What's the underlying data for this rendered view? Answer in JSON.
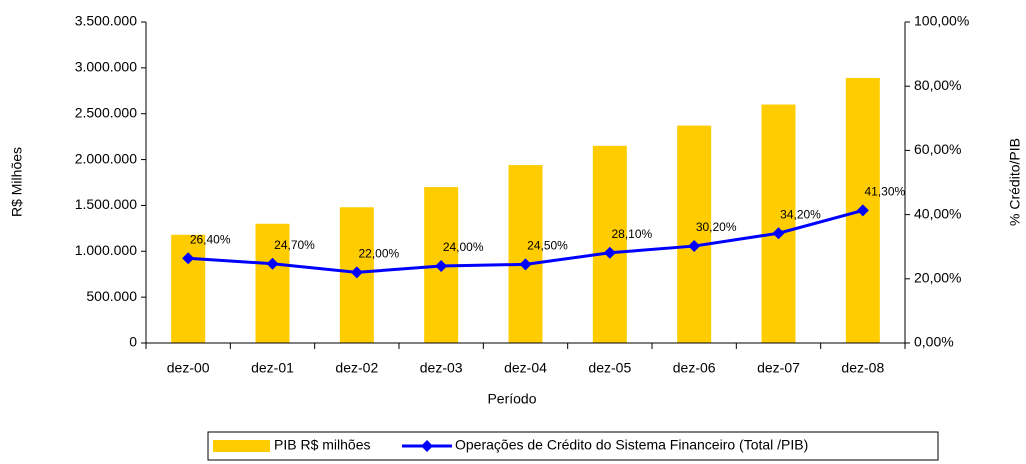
{
  "chart_data": {
    "type": "bar_line",
    "xlabel": "Período",
    "ylabel": "R$ Milhões",
    "y2label": "% Crédito/PIB",
    "categories": [
      "dez-00",
      "dez-01",
      "dez-02",
      "dez-03",
      "dez-04",
      "dez-05",
      "dez-06",
      "dez-07",
      "dez-08"
    ],
    "series": [
      {
        "name": "PIB R$ milhões",
        "type": "bar",
        "color": "#ffcc00",
        "values": [
          1180000,
          1300000,
          1480000,
          1700000,
          1940000,
          2150000,
          2370000,
          2600000,
          2890000
        ]
      },
      {
        "name": "Operações de Crédito do Sistema Financeiro (Total /PIB)",
        "type": "line",
        "axis": "y2",
        "color": "#0000ff",
        "values": [
          26.4,
          24.7,
          22.0,
          24.0,
          24.5,
          28.1,
          30.2,
          34.2,
          41.3
        ],
        "value_labels": [
          "26,40%",
          "24,70%",
          "22,00%",
          "24,00%",
          "24,50%",
          "28,10%",
          "30,20%",
          "34,20%",
          "41,30%"
        ]
      }
    ],
    "ylim": [
      0,
      3500000
    ],
    "yticks": [
      0,
      {
        "value": 500000,
        "label": "500.000"
      },
      {
        "value": 1000000,
        "label": "1.000.000"
      },
      {
        "value": 1500000,
        "label": "1.500.000"
      },
      {
        "value": 2000000,
        "label": "2.000.000"
      },
      {
        "value": 2500000,
        "label": "2.500.000"
      },
      {
        "value": 3000000,
        "label": "3.000.000"
      },
      {
        "value": 3500000,
        "label": "3.500.000"
      }
    ],
    "y2lim": [
      0,
      100
    ],
    "y2ticks": [
      {
        "value": 0,
        "label": "0,00%"
      },
      {
        "value": 20,
        "label": "20,00%"
      },
      {
        "value": 40,
        "label": "40,00%"
      },
      {
        "value": 60,
        "label": "60,00%"
      },
      {
        "value": 80,
        "label": "80,00%"
      },
      {
        "value": 100,
        "label": "100,00%"
      }
    ],
    "legend": "bottom"
  }
}
